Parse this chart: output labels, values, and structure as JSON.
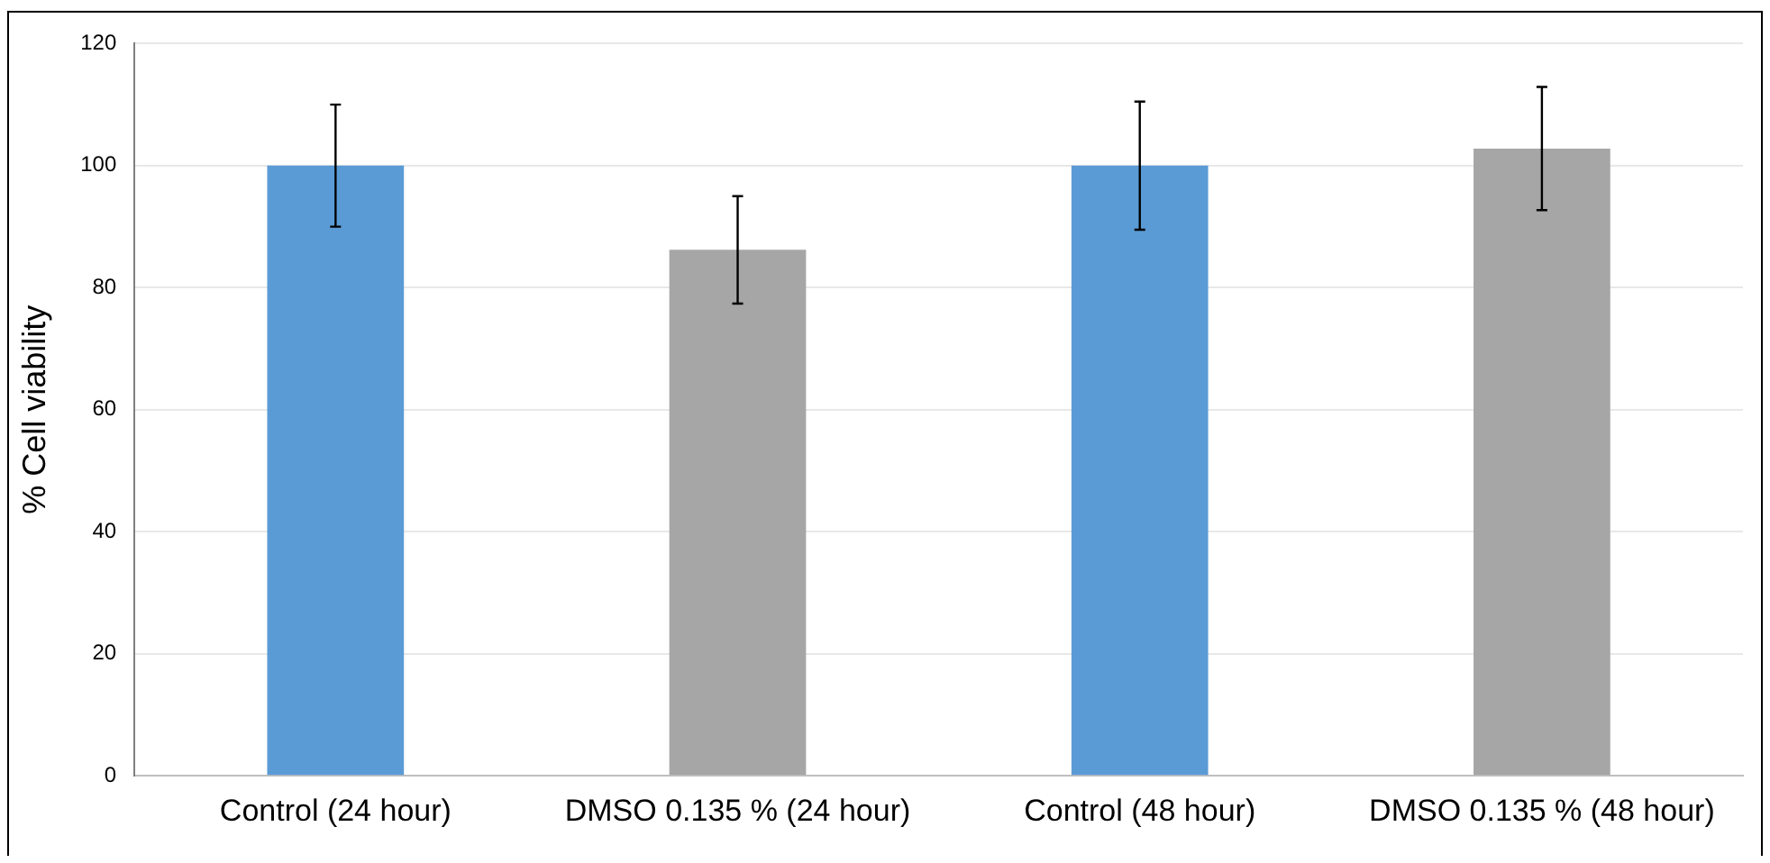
{
  "chart_data": {
    "type": "bar",
    "ylabel": "% Cell viability",
    "categories": [
      "Control (24 hour)",
      "DMSO 0.135 % (24 hour)",
      "Control (48 hour)",
      "DMSO 0.135 % (48 hour)"
    ],
    "values": [
      100,
      86.2,
      100,
      102.8
    ],
    "errors": [
      10,
      8.8,
      10.5,
      10.1
    ],
    "colors": [
      "#5b9bd5",
      "#a6a6a6",
      "#5b9bd5",
      "#a6a6a6"
    ],
    "ylim": [
      0,
      120
    ],
    "yticks": [
      0,
      20,
      40,
      60,
      80,
      100,
      120
    ],
    "grid": "y",
    "legend": false
  }
}
